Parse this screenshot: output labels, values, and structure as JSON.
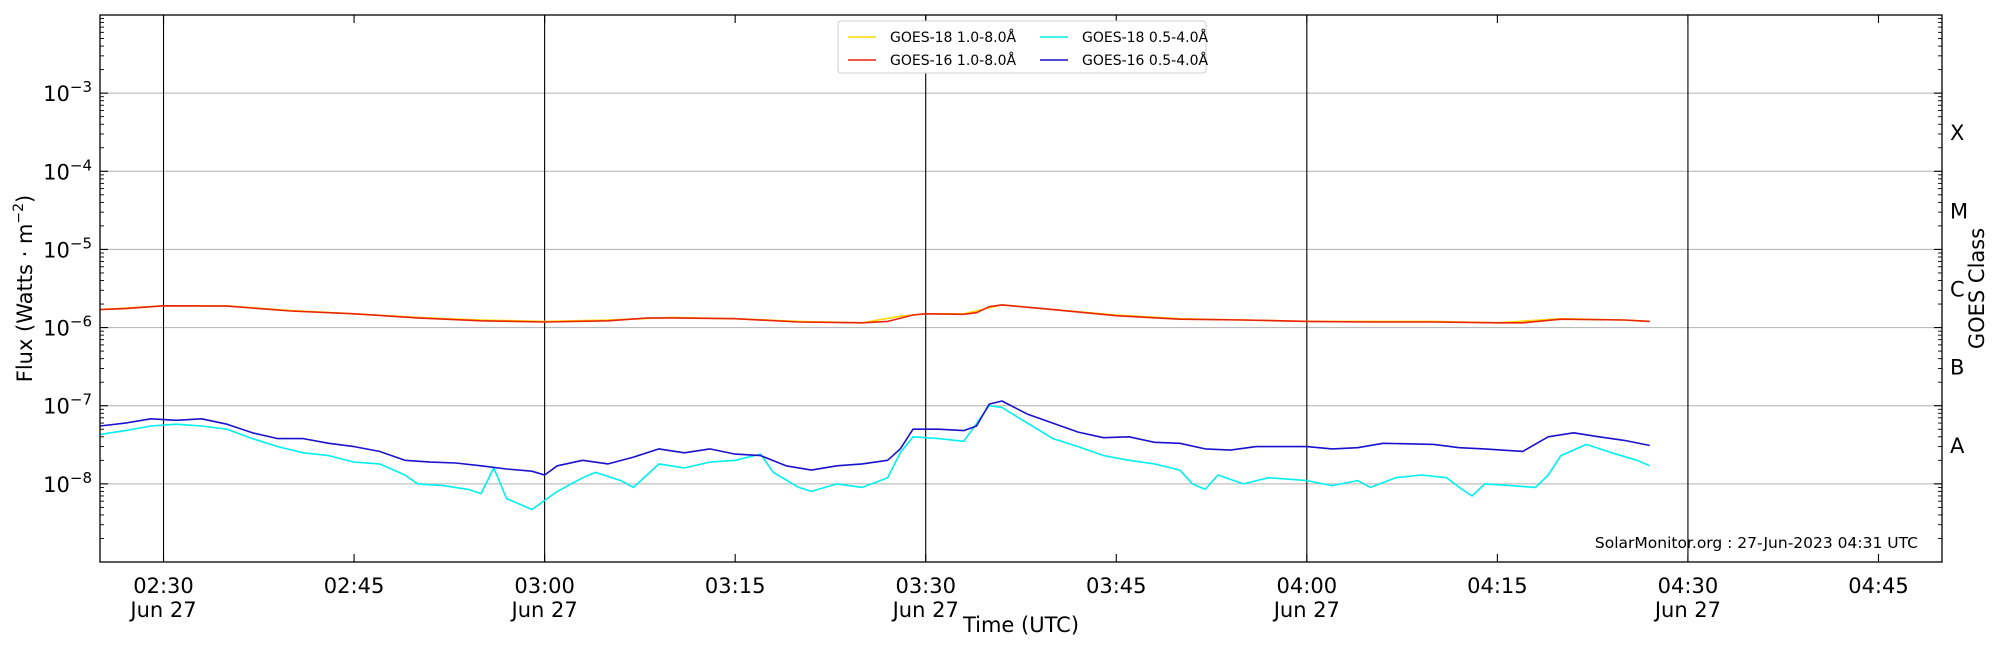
{
  "chart_data": {
    "type": "line",
    "title": "",
    "xlabel": "Time (UTC)",
    "ylabel_main": "Flux (Watts · m",
    "ylabel_sup": "−2",
    "ylabel_close": ")",
    "y2label": "GOES Class",
    "yscale": "log",
    "ylim": [
      1e-09,
      0.01
    ],
    "xlim": [
      "02:25",
      "04:50"
    ],
    "x_ticks": [
      {
        "time": "02:30",
        "label": "02:30",
        "sub": "Jun 27"
      },
      {
        "time": "02:45",
        "label": "02:45",
        "sub": ""
      },
      {
        "time": "03:00",
        "label": "03:00",
        "sub": "Jun 27"
      },
      {
        "time": "03:15",
        "label": "03:15",
        "sub": ""
      },
      {
        "time": "03:30",
        "label": "03:30",
        "sub": "Jun 27"
      },
      {
        "time": "03:45",
        "label": "03:45",
        "sub": ""
      },
      {
        "time": "04:00",
        "label": "04:00",
        "sub": "Jun 27"
      },
      {
        "time": "04:15",
        "label": "04:15",
        "sub": ""
      },
      {
        "time": "04:30",
        "label": "04:30",
        "sub": "Jun 27"
      },
      {
        "time": "04:45",
        "label": "04:45",
        "sub": ""
      }
    ],
    "vlines": [
      "02:30",
      "03:00",
      "03:30",
      "04:00",
      "04:30"
    ],
    "y_ticks": [
      {
        "value": 1e-08,
        "base": "10",
        "exp": "−8"
      },
      {
        "value": 1e-07,
        "base": "10",
        "exp": "−7"
      },
      {
        "value": 1e-06,
        "base": "10",
        "exp": "−6"
      },
      {
        "value": 1e-05,
        "base": "10",
        "exp": "−5"
      },
      {
        "value": 0.0001,
        "base": "10",
        "exp": "−4"
      },
      {
        "value": 0.001,
        "base": "10",
        "exp": "−3"
      }
    ],
    "goes_classes": [
      {
        "label": "A",
        "value": 3.16e-08
      },
      {
        "label": "B",
        "value": 3.16e-07
      },
      {
        "label": "C",
        "value": 3.16e-06
      },
      {
        "label": "M",
        "value": 3.16e-05
      },
      {
        "label": "X",
        "value": 0.000316
      }
    ],
    "grid": "horizontal",
    "legend_position": "top-center",
    "legend": [
      {
        "name": "GOES-18 1.0-8.0Å",
        "color": "#ffd700"
      },
      {
        "name": "GOES-16 1.0-8.0Å",
        "color": "#e8240a"
      },
      {
        "name": "GOES-18 0.5-4.0Å",
        "color": "#00f0f0"
      },
      {
        "name": "GOES-16 0.5-4.0Å",
        "color": "#1a12cc"
      }
    ],
    "credit": "SolarMonitor.org : 27-Jun-2023 04:31 UTC",
    "series": [
      {
        "name": "GOES-18 1.0-8.0Å",
        "color": "#ffd700",
        "points": [
          [
            "02:25",
            1.7e-06
          ],
          [
            "02:30",
            1.9e-06
          ],
          [
            "02:35",
            1.9e-06
          ],
          [
            "02:40",
            1.65e-06
          ],
          [
            "02:45",
            1.5e-06
          ],
          [
            "02:50",
            1.35e-06
          ],
          [
            "02:55",
            1.25e-06
          ],
          [
            "03:00",
            1.2e-06
          ],
          [
            "03:05",
            1.25e-06
          ],
          [
            "03:10",
            1.35e-06
          ],
          [
            "03:15",
            1.3e-06
          ],
          [
            "03:20",
            1.2e-06
          ],
          [
            "03:25",
            1.15e-06
          ],
          [
            "03:28",
            1.4e-06
          ],
          [
            "03:30",
            1.5e-06
          ],
          [
            "03:33",
            1.5e-06
          ],
          [
            "03:36",
            1.95e-06
          ],
          [
            "03:40",
            1.7e-06
          ],
          [
            "03:45",
            1.45e-06
          ],
          [
            "03:50",
            1.3e-06
          ],
          [
            "03:55",
            1.25e-06
          ],
          [
            "04:00",
            1.2e-06
          ],
          [
            "04:05",
            1.2e-06
          ],
          [
            "04:10",
            1.2e-06
          ],
          [
            "04:15",
            1.15e-06
          ],
          [
            "04:20",
            1.3e-06
          ],
          [
            "04:25",
            1.25e-06
          ],
          [
            "04:27",
            1.2e-06
          ]
        ]
      },
      {
        "name": "GOES-16 1.0-8.0Å",
        "color": "#e8240a",
        "points": [
          [
            "02:25",
            1.7e-06
          ],
          [
            "02:27",
            1.75e-06
          ],
          [
            "02:30",
            1.9e-06
          ],
          [
            "02:35",
            1.88e-06
          ],
          [
            "02:40",
            1.63e-06
          ],
          [
            "02:45",
            1.5e-06
          ],
          [
            "02:50",
            1.33e-06
          ],
          [
            "02:55",
            1.22e-06
          ],
          [
            "03:00",
            1.18e-06
          ],
          [
            "03:05",
            1.22e-06
          ],
          [
            "03:08",
            1.32e-06
          ],
          [
            "03:10",
            1.33e-06
          ],
          [
            "03:15",
            1.3e-06
          ],
          [
            "03:20",
            1.18e-06
          ],
          [
            "03:25",
            1.15e-06
          ],
          [
            "03:27",
            1.2e-06
          ],
          [
            "03:29",
            1.45e-06
          ],
          [
            "03:30",
            1.5e-06
          ],
          [
            "03:33",
            1.48e-06
          ],
          [
            "03:34",
            1.55e-06
          ],
          [
            "03:35",
            1.85e-06
          ],
          [
            "03:36",
            1.95e-06
          ],
          [
            "03:40",
            1.7e-06
          ],
          [
            "03:45",
            1.42e-06
          ],
          [
            "03:50",
            1.28e-06
          ],
          [
            "03:55",
            1.25e-06
          ],
          [
            "04:00",
            1.2e-06
          ],
          [
            "04:05",
            1.18e-06
          ],
          [
            "04:10",
            1.18e-06
          ],
          [
            "04:15",
            1.15e-06
          ],
          [
            "04:17",
            1.15e-06
          ],
          [
            "04:20",
            1.28e-06
          ],
          [
            "04:25",
            1.25e-06
          ],
          [
            "04:27",
            1.2e-06
          ]
        ]
      },
      {
        "name": "GOES-18 0.5-4.0Å",
        "color": "#00f0f0",
        "points": [
          [
            "02:25",
            4.3e-08
          ],
          [
            "02:27",
            4.8e-08
          ],
          [
            "02:29",
            5.5e-08
          ],
          [
            "02:31",
            5.8e-08
          ],
          [
            "02:33",
            5.5e-08
          ],
          [
            "02:35",
            5e-08
          ],
          [
            "02:37",
            3.8e-08
          ],
          [
            "02:39",
            3e-08
          ],
          [
            "02:41",
            2.5e-08
          ],
          [
            "02:43",
            2.3e-08
          ],
          [
            "02:45",
            1.9e-08
          ],
          [
            "02:47",
            1.8e-08
          ],
          [
            "02:49",
            1.3e-08
          ],
          [
            "02:50",
            1e-08
          ],
          [
            "02:52",
            9.5e-09
          ],
          [
            "02:54",
            8.5e-09
          ],
          [
            "02:55",
            7.5e-09
          ],
          [
            "02:56",
            1.6e-08
          ],
          [
            "02:57",
            6.5e-09
          ],
          [
            "02:59",
            4.7e-09
          ],
          [
            "03:01",
            8e-09
          ],
          [
            "03:03",
            1.2e-08
          ],
          [
            "03:04",
            1.4e-08
          ],
          [
            "03:06",
            1.1e-08
          ],
          [
            "03:07",
            9e-09
          ],
          [
            "03:09",
            1.8e-08
          ],
          [
            "03:11",
            1.6e-08
          ],
          [
            "03:13",
            1.9e-08
          ],
          [
            "03:15",
            2e-08
          ],
          [
            "03:17",
            2.4e-08
          ],
          [
            "03:18",
            1.4e-08
          ],
          [
            "03:20",
            9e-09
          ],
          [
            "03:21",
            8e-09
          ],
          [
            "03:23",
            1e-08
          ],
          [
            "03:25",
            9e-09
          ],
          [
            "03:27",
            1.2e-08
          ],
          [
            "03:28",
            2.5e-08
          ],
          [
            "03:29",
            4e-08
          ],
          [
            "03:31",
            3.8e-08
          ],
          [
            "03:33",
            3.5e-08
          ],
          [
            "03:35",
            1e-07
          ],
          [
            "03:36",
            9.5e-08
          ],
          [
            "03:38",
            6e-08
          ],
          [
            "03:40",
            3.8e-08
          ],
          [
            "03:42",
            3e-08
          ],
          [
            "03:44",
            2.3e-08
          ],
          [
            "03:46",
            2e-08
          ],
          [
            "03:48",
            1.8e-08
          ],
          [
            "03:50",
            1.5e-08
          ],
          [
            "03:51",
            1e-08
          ],
          [
            "03:52",
            8.5e-09
          ],
          [
            "03:53",
            1.3e-08
          ],
          [
            "03:55",
            1e-08
          ],
          [
            "03:57",
            1.2e-08
          ],
          [
            "04:00",
            1.1e-08
          ],
          [
            "04:02",
            9.5e-09
          ],
          [
            "04:04",
            1.1e-08
          ],
          [
            "04:05",
            9e-09
          ],
          [
            "04:07",
            1.2e-08
          ],
          [
            "04:09",
            1.3e-08
          ],
          [
            "04:11",
            1.2e-08
          ],
          [
            "04:12",
            9e-09
          ],
          [
            "04:13",
            7e-09
          ],
          [
            "04:14",
            1e-08
          ],
          [
            "04:16",
            9.5e-09
          ],
          [
            "04:18",
            9e-09
          ],
          [
            "04:19",
            1.3e-08
          ],
          [
            "04:20",
            2.3e-08
          ],
          [
            "04:22",
            3.2e-08
          ],
          [
            "04:24",
            2.5e-08
          ],
          [
            "04:26",
            2e-08
          ],
          [
            "04:27",
            1.7e-08
          ]
        ]
      },
      {
        "name": "GOES-16 0.5-4.0Å",
        "color": "#1a12cc",
        "points": [
          [
            "02:25",
            5.5e-08
          ],
          [
            "02:27",
            6e-08
          ],
          [
            "02:29",
            6.8e-08
          ],
          [
            "02:31",
            6.5e-08
          ],
          [
            "02:33",
            6.8e-08
          ],
          [
            "02:35",
            5.8e-08
          ],
          [
            "02:37",
            4.5e-08
          ],
          [
            "02:39",
            3.8e-08
          ],
          [
            "02:41",
            3.8e-08
          ],
          [
            "02:43",
            3.3e-08
          ],
          [
            "02:45",
            3e-08
          ],
          [
            "02:47",
            2.6e-08
          ],
          [
            "02:49",
            2e-08
          ],
          [
            "02:51",
            1.9e-08
          ],
          [
            "02:53",
            1.85e-08
          ],
          [
            "02:55",
            1.7e-08
          ],
          [
            "02:57",
            1.55e-08
          ],
          [
            "02:59",
            1.45e-08
          ],
          [
            "03:00",
            1.3e-08
          ],
          [
            "03:01",
            1.7e-08
          ],
          [
            "03:03",
            2e-08
          ],
          [
            "03:05",
            1.8e-08
          ],
          [
            "03:07",
            2.2e-08
          ],
          [
            "03:09",
            2.8e-08
          ],
          [
            "03:11",
            2.5e-08
          ],
          [
            "03:13",
            2.8e-08
          ],
          [
            "03:15",
            2.4e-08
          ],
          [
            "03:17",
            2.3e-08
          ],
          [
            "03:19",
            1.7e-08
          ],
          [
            "03:21",
            1.5e-08
          ],
          [
            "03:23",
            1.7e-08
          ],
          [
            "03:25",
            1.8e-08
          ],
          [
            "03:27",
            2e-08
          ],
          [
            "03:28",
            2.8e-08
          ],
          [
            "03:29",
            5e-08
          ],
          [
            "03:31",
            5e-08
          ],
          [
            "03:33",
            4.8e-08
          ],
          [
            "03:34",
            5.5e-08
          ],
          [
            "03:35",
            1.05e-07
          ],
          [
            "03:36",
            1.15e-07
          ],
          [
            "03:38",
            7.8e-08
          ],
          [
            "03:40",
            6e-08
          ],
          [
            "03:42",
            4.6e-08
          ],
          [
            "03:44",
            3.9e-08
          ],
          [
            "03:46",
            4e-08
          ],
          [
            "03:48",
            3.4e-08
          ],
          [
            "03:50",
            3.3e-08
          ],
          [
            "03:52",
            2.8e-08
          ],
          [
            "03:54",
            2.7e-08
          ],
          [
            "03:56",
            3e-08
          ],
          [
            "04:00",
            3e-08
          ],
          [
            "04:02",
            2.8e-08
          ],
          [
            "04:04",
            2.9e-08
          ],
          [
            "04:06",
            3.3e-08
          ],
          [
            "04:10",
            3.2e-08
          ],
          [
            "04:12",
            2.9e-08
          ],
          [
            "04:14",
            2.8e-08
          ],
          [
            "04:17",
            2.6e-08
          ],
          [
            "04:19",
            4e-08
          ],
          [
            "04:21",
            4.5e-08
          ],
          [
            "04:23",
            4e-08
          ],
          [
            "04:25",
            3.6e-08
          ],
          [
            "04:27",
            3.1e-08
          ]
        ]
      }
    ]
  }
}
